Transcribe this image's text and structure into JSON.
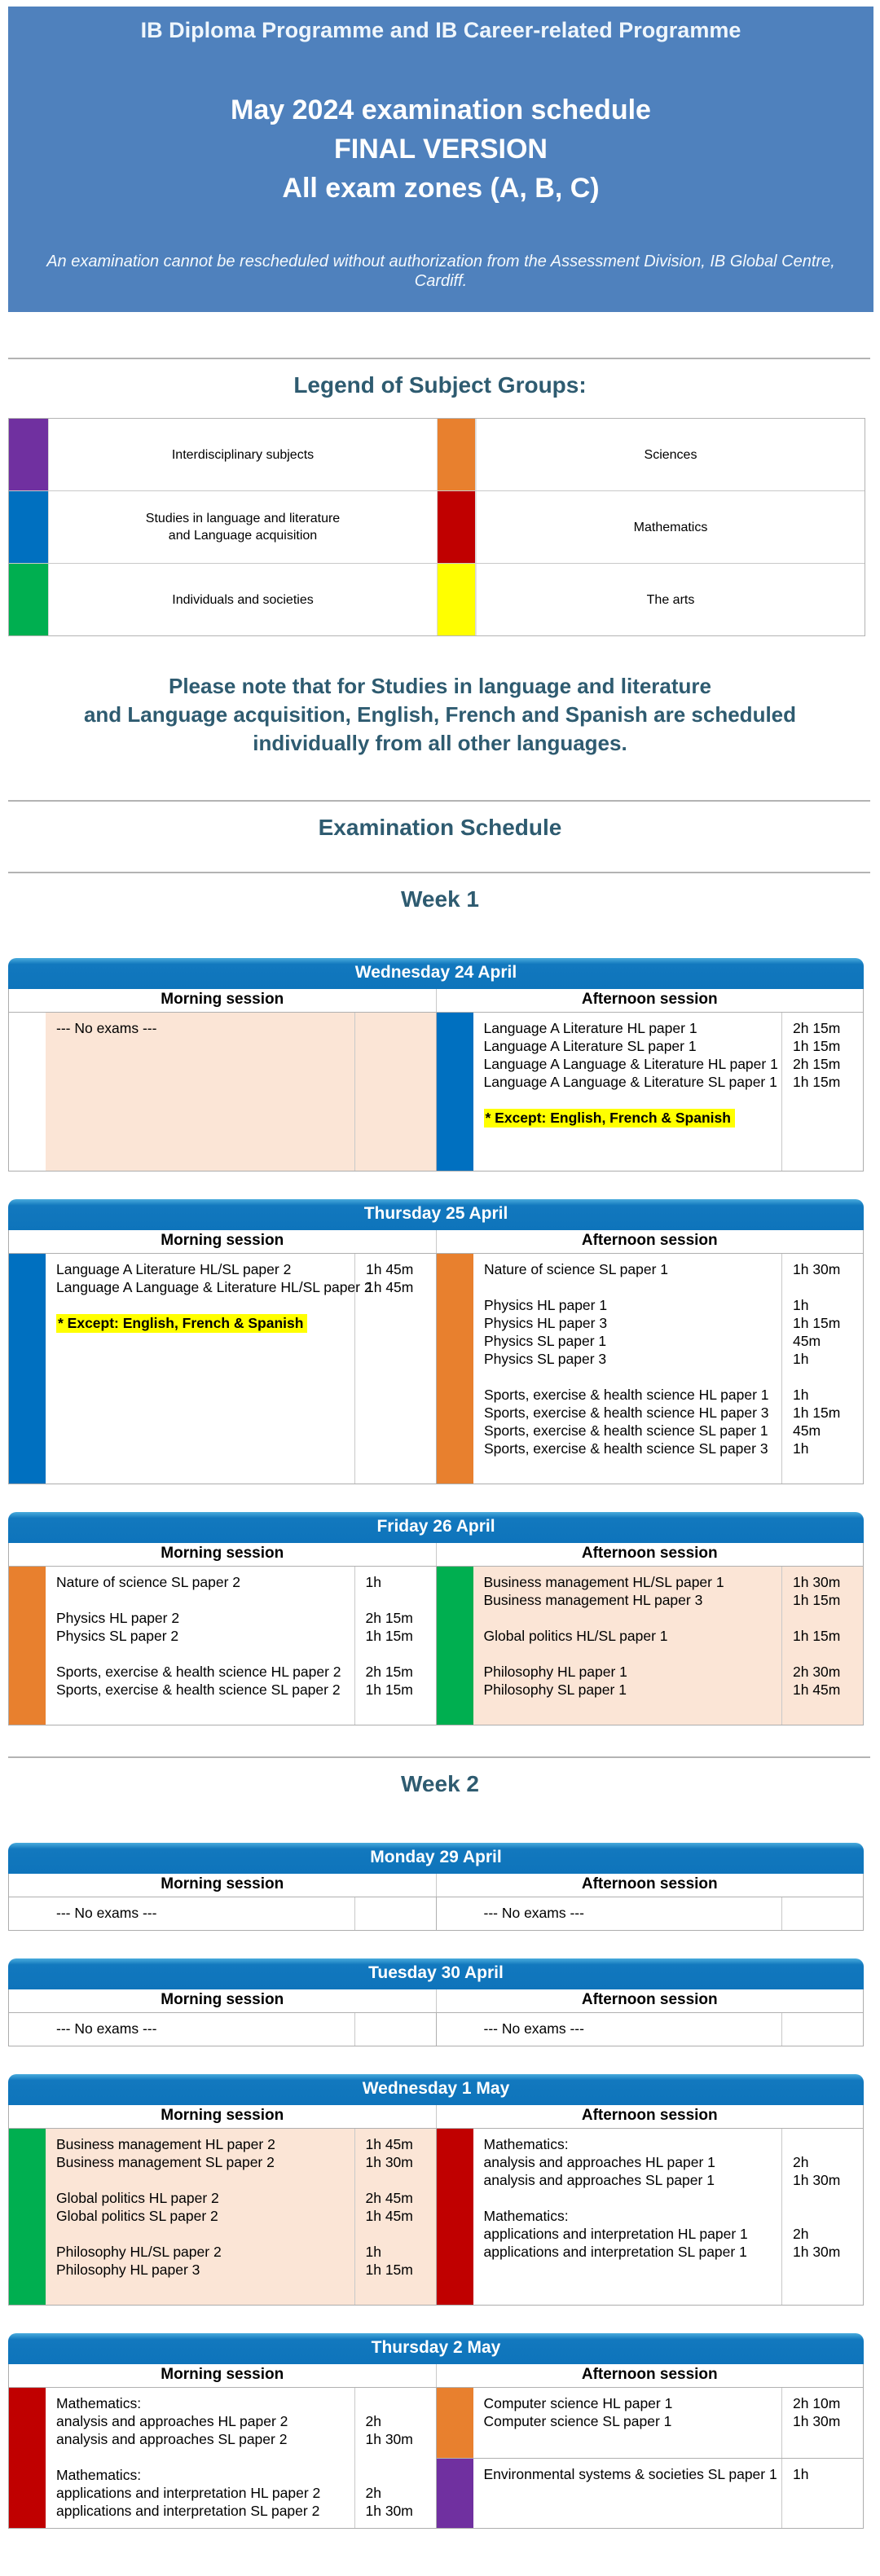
{
  "banner": {
    "programme_line": "IB Diploma Programme and IB Career-related Programme",
    "title_line1": "May 2024 examination schedule",
    "title_line2": "FINAL VERSION",
    "title_line3": "All exam zones (A, B, C)",
    "reschedule_note": "An examination cannot be rescheduled without authorization from the Assessment Division, IB Global Centre, Cardiff."
  },
  "legend": {
    "title": "Legend of Subject Groups:",
    "rows": [
      [
        {
          "color": "#7030A0",
          "label": "Interdisciplinary subjects"
        },
        {
          "color": "#E8802E",
          "label": "Sciences"
        }
      ],
      [
        {
          "color": "#0070C0",
          "label": "Studies in language and literature\nand Language acquisition"
        },
        {
          "color": "#C00000",
          "label": "Mathematics"
        }
      ],
      [
        {
          "color": "#00AF50",
          "label": "Individuals and societies"
        },
        {
          "color": "#FFFF00",
          "label": "The arts"
        }
      ]
    ]
  },
  "language_note": "Please note that for Studies in language and literature\nand Language acquisition, English, French and Spanish are scheduled\nindividually from all other languages.",
  "schedule_heading": "Examination Schedule",
  "session_headers": {
    "morning": "Morning session",
    "afternoon": "Afternoon session"
  },
  "colors": {
    "banner_bg": "#4F81BD",
    "day_header_bg": "#0E74BB",
    "heading_text": "#2E5B70",
    "session_shaded_bg": "#FBE5D6",
    "highlight": "#FFFF00"
  },
  "weeks": [
    {
      "label": "Week 1",
      "days": [
        {
          "title": "Wednesday 24 April",
          "morning": {
            "blocks": [
              {
                "bar": null,
                "bg": "#FBE5D6",
                "rows": [
                  {
                    "t": "--- No exams ---"
                  }
                ]
              }
            ]
          },
          "afternoon": {
            "blocks": [
              {
                "bar": "#0070C0",
                "bg": null,
                "rows": [
                  {
                    "t": "Language A Literature HL paper 1",
                    "d": "2h 15m"
                  },
                  {
                    "t": "Language A Literature SL paper 1",
                    "d": "1h 15m"
                  },
                  {
                    "t": "Language A Language & Literature HL paper 1",
                    "d": "2h 15m"
                  },
                  {
                    "t": "Language A Language & Literature SL paper 1",
                    "d": "1h 15m"
                  },
                  {
                    "t": ""
                  },
                  {
                    "t": "* Except: English, French & Spanish",
                    "hl": true
                  },
                  {
                    "t": ""
                  },
                  {
                    "t": ""
                  }
                ]
              }
            ]
          }
        },
        {
          "title": "Thursday 25 April",
          "morning": {
            "blocks": [
              {
                "bar": "#0070C0",
                "bg": null,
                "rows": [
                  {
                    "t": "Language A Literature HL/SL paper 2",
                    "d": "1h 45m"
                  },
                  {
                    "t": "Language A Language & Literature HL/SL paper 2",
                    "d": "1h 45m"
                  },
                  {
                    "t": ""
                  },
                  {
                    "t": "* Except: English, French & Spanish",
                    "hl": true
                  }
                ]
              }
            ]
          },
          "afternoon": {
            "blocks": [
              {
                "bar": "#E8802E",
                "bg": null,
                "rows": [
                  {
                    "t": "Nature of science SL paper 1",
                    "d": "1h 30m"
                  },
                  {
                    "t": ""
                  },
                  {
                    "t": "Physics HL paper 1",
                    "d": "1h"
                  },
                  {
                    "t": "Physics HL paper 3",
                    "d": "1h 15m"
                  },
                  {
                    "t": "Physics SL paper 1",
                    "d": "45m"
                  },
                  {
                    "t": "Physics SL paper 3",
                    "d": "1h"
                  },
                  {
                    "t": ""
                  },
                  {
                    "t": "Sports, exercise & health science HL paper 1",
                    "d": "1h"
                  },
                  {
                    "t": "Sports, exercise & health science HL paper 3",
                    "d": "1h 15m"
                  },
                  {
                    "t": "Sports, exercise & health science SL paper 1",
                    "d": "45m"
                  },
                  {
                    "t": "Sports, exercise & health science SL paper 3",
                    "d": "1h"
                  },
                  {
                    "t": ""
                  }
                ]
              }
            ]
          }
        },
        {
          "title": "Friday 26 April",
          "morning": {
            "blocks": [
              {
                "bar": "#E8802E",
                "bg": null,
                "rows": [
                  {
                    "t": "Nature of science SL paper 2",
                    "d": "1h"
                  },
                  {
                    "t": ""
                  },
                  {
                    "t": "Physics HL paper 2",
                    "d": "2h 15m"
                  },
                  {
                    "t": "Physics SL paper 2",
                    "d": "1h 15m"
                  },
                  {
                    "t": ""
                  },
                  {
                    "t": "Sports, exercise & health science HL paper 2",
                    "d": "2h 15m"
                  },
                  {
                    "t": "Sports, exercise & health science SL paper 2",
                    "d": "1h 15m"
                  },
                  {
                    "t": ""
                  }
                ]
              }
            ]
          },
          "afternoon": {
            "blocks": [
              {
                "bar": "#00AF50",
                "bg": "#FBE5D6",
                "rows": [
                  {
                    "t": "Business management HL/SL paper 1",
                    "d": "1h 30m"
                  },
                  {
                    "t": "Business management HL paper 3",
                    "d": "1h 15m"
                  },
                  {
                    "t": ""
                  },
                  {
                    "t": "Global politics HL/SL paper 1",
                    "d": "1h 15m"
                  },
                  {
                    "t": ""
                  },
                  {
                    "t": "Philosophy HL paper 1",
                    "d": "2h 30m"
                  },
                  {
                    "t": "Philosophy SL paper 1",
                    "d": "1h 45m"
                  }
                ]
              }
            ]
          }
        }
      ]
    },
    {
      "label": "Week 2",
      "days": [
        {
          "title": "Monday 29 April",
          "morning": {
            "blocks": [
              {
                "bar": null,
                "bg": null,
                "rows": [
                  {
                    "t": "--- No exams ---"
                  }
                ]
              }
            ]
          },
          "afternoon": {
            "blocks": [
              {
                "bar": null,
                "bg": null,
                "rows": [
                  {
                    "t": "--- No exams ---"
                  }
                ]
              }
            ]
          }
        },
        {
          "title": "Tuesday 30 April",
          "morning": {
            "blocks": [
              {
                "bar": null,
                "bg": null,
                "rows": [
                  {
                    "t": "--- No exams ---"
                  }
                ]
              }
            ]
          },
          "afternoon": {
            "blocks": [
              {
                "bar": null,
                "bg": null,
                "rows": [
                  {
                    "t": "--- No exams ---"
                  }
                ]
              }
            ]
          }
        },
        {
          "title": "Wednesday 1 May",
          "morning": {
            "blocks": [
              {
                "bar": "#00AF50",
                "bg": "#FBE5D6",
                "rows": [
                  {
                    "t": "Business management HL paper 2",
                    "d": "1h 45m"
                  },
                  {
                    "t": "Business management SL paper 2",
                    "d": "1h 30m"
                  },
                  {
                    "t": ""
                  },
                  {
                    "t": "Global politics HL paper 2",
                    "d": "2h 45m"
                  },
                  {
                    "t": "Global politics SL paper 2",
                    "d": "1h 45m"
                  },
                  {
                    "t": ""
                  },
                  {
                    "t": "Philosophy HL/SL paper 2",
                    "d": "1h"
                  },
                  {
                    "t": "Philosophy HL paper 3",
                    "d": "1h 15m"
                  },
                  {
                    "t": ""
                  }
                ]
              }
            ]
          },
          "afternoon": {
            "blocks": [
              {
                "bar": "#C00000",
                "bg": null,
                "rows": [
                  {
                    "t": "Mathematics:"
                  },
                  {
                    "t": "analysis and approaches HL paper 1",
                    "d": "2h"
                  },
                  {
                    "t": "analysis and approaches SL paper 1",
                    "d": "1h 30m"
                  },
                  {
                    "t": ""
                  },
                  {
                    "t": "Mathematics:"
                  },
                  {
                    "t": "applications and interpretation HL paper 1",
                    "d": "2h"
                  },
                  {
                    "t": "applications and interpretation SL paper 1",
                    "d": "1h 30m"
                  }
                ]
              }
            ]
          }
        },
        {
          "title": "Thursday 2 May",
          "morning": {
            "blocks": [
              {
                "bar": "#C00000",
                "bg": null,
                "rows": [
                  {
                    "t": "Mathematics:"
                  },
                  {
                    "t": "analysis and approaches HL paper 2",
                    "d": "2h"
                  },
                  {
                    "t": "analysis and approaches SL paper 2",
                    "d": "1h 30m"
                  },
                  {
                    "t": ""
                  },
                  {
                    "t": "Mathematics:"
                  },
                  {
                    "t": "applications and interpretation HL paper 2",
                    "d": "2h"
                  },
                  {
                    "t": "applications and interpretation SL paper 2",
                    "d": "1h 30m"
                  }
                ]
              }
            ]
          },
          "afternoon": {
            "blocks": [
              {
                "bar": "#E8802E",
                "bg": null,
                "rows": [
                  {
                    "t": "Computer science HL paper 1",
                    "d": "2h 10m"
                  },
                  {
                    "t": "Computer science SL paper 1",
                    "d": "1h 30m"
                  },
                  {
                    "t": ""
                  }
                ]
              },
              {
                "bar": "#7030A0",
                "bg": null,
                "rows": [
                  {
                    "t": "Environmental systems & societies SL paper 1",
                    "d": "1h"
                  },
                  {
                    "t": ""
                  },
                  {
                    "t": ""
                  }
                ]
              }
            ]
          }
        }
      ]
    }
  ]
}
